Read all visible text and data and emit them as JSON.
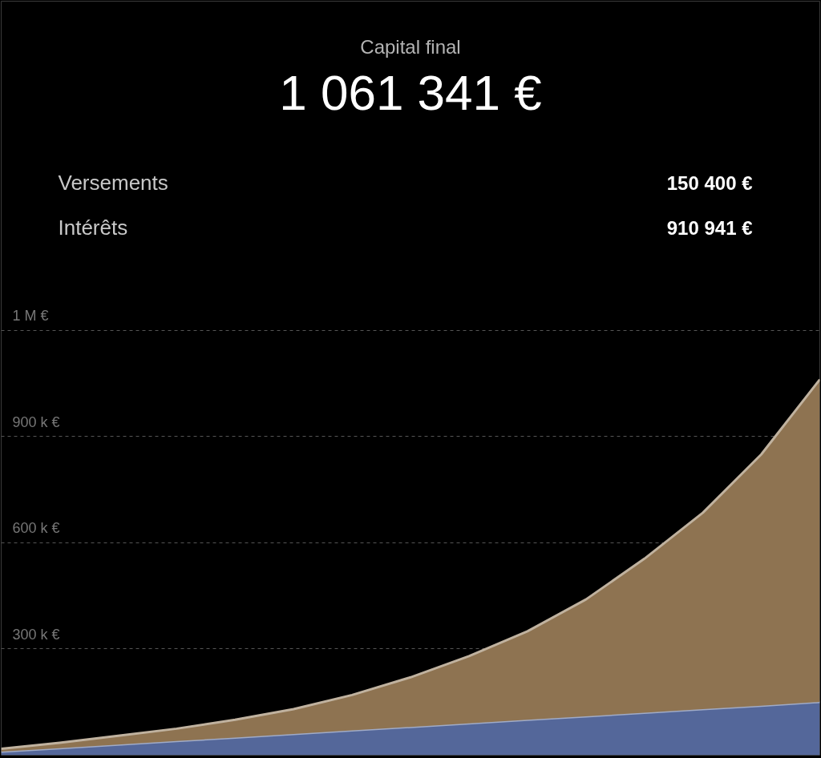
{
  "chart_data": {
    "type": "area",
    "stacked": true,
    "title": "Capital final",
    "subtitle": "1 061 341 €",
    "annotations": [
      "Versements",
      "150 400 €",
      "Intérêts",
      "910 941 €"
    ],
    "categories": [
      null,
      null,
      null,
      null,
      null,
      null,
      null,
      null,
      null,
      null,
      null,
      null,
      null,
      null,
      null
    ],
    "series": [
      {
        "color": "#54679a",
        "values": [
          10000,
          20000,
          30000,
          40000,
          50000,
          60000,
          70000,
          80000,
          90000,
          100000,
          110000,
          120000,
          130000,
          140000,
          150400
        ]
      },
      {
        "color": "#8e7351",
        "values": [
          8000,
          15000,
          25000,
          35000,
          50000,
          70000,
          100000,
          140000,
          190000,
          250000,
          330000,
          435000,
          555000,
          710000,
          910941
        ]
      }
    ],
    "ylim": [
      0,
      2130000
    ],
    "yticks": [
      {
        "value": 300000,
        "label": "300 k €"
      },
      {
        "value": 600000,
        "label": "600 k €"
      },
      {
        "value": 900000,
        "label": "900 k €"
      },
      {
        "value": 1200000,
        "label": "1 M €"
      }
    ],
    "grid": "y",
    "tick_labels": "y"
  }
}
